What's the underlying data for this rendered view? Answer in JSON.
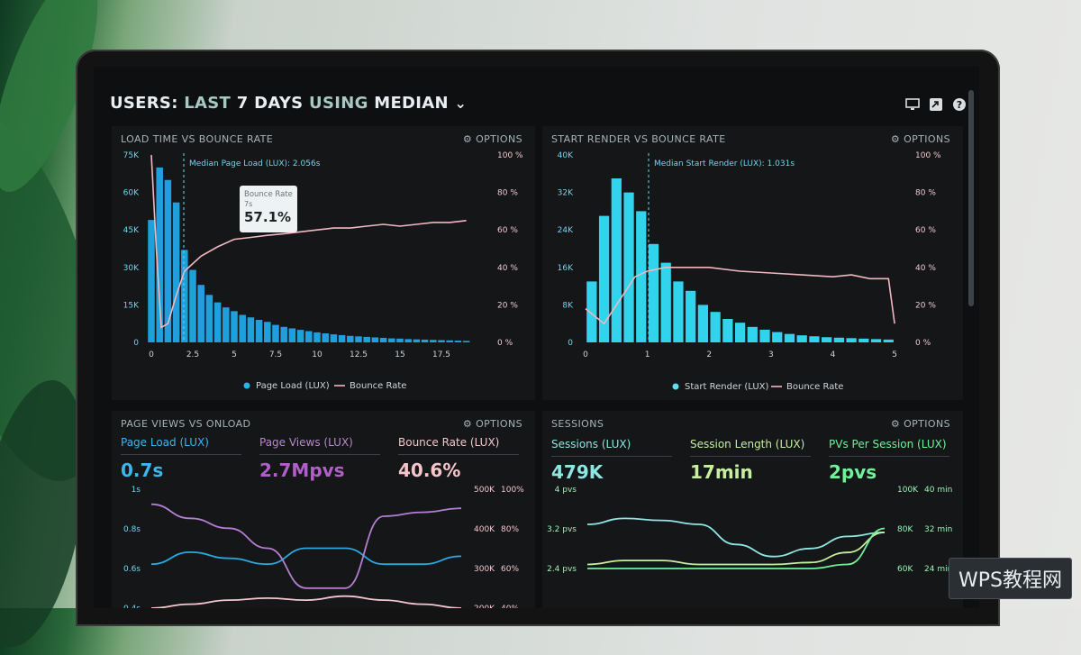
{
  "header": {
    "title_prefix": "USERS:",
    "title_range": "LAST",
    "title_days": "7 DAYS",
    "title_mid": "USING",
    "title_metric": "MEDIAN",
    "title_chevron": "⌄"
  },
  "icons": [
    "monitor-icon",
    "share-icon",
    "help-icon"
  ],
  "panels": {
    "load_time": {
      "title": "LOAD TIME VS BOUNCE RATE",
      "options": "⚙ OPTIONS",
      "median_label": "Median Page Load (LUX): 2.056s",
      "legend_a": "Page Load (LUX)",
      "legend_b": "Bounce Rate",
      "tooltip_title": "Bounce Rate",
      "tooltip_sub": "7s",
      "tooltip_value": "57.1%"
    },
    "start_render": {
      "title": "START RENDER VS BOUNCE RATE",
      "options": "⚙ OPTIONS",
      "median_label": "Median Start Render (LUX): 1.031s",
      "legend_a": "Start Render (LUX)",
      "legend_b": "Bounce Rate"
    },
    "page_views": {
      "title": "PAGE VIEWS VS ONLOAD",
      "options": "⚙ OPTIONS",
      "stat1_label": "Page Load (LUX)",
      "stat1_value": "0.7s",
      "stat2_label": "Page Views (LUX)",
      "stat2_value": "2.7Mpvs",
      "stat3_label": "Bounce Rate (LUX)",
      "stat3_value": "40.6%"
    },
    "sessions": {
      "title": "SESSIONS",
      "options": "⚙ OPTIONS",
      "stat1_label": "Sessions (LUX)",
      "stat1_value": "479K",
      "stat2_label": "Session Length (LUX)",
      "stat2_value": "17min",
      "stat3_label": "PVs Per Session (LUX)",
      "stat3_value": "2pvs"
    }
  },
  "watermark": "WPS教程网",
  "chart_data": [
    {
      "type": "bar",
      "name": "Load Time vs Bounce Rate",
      "x_ticks": [
        "0",
        "2.5",
        "5",
        "7.5",
        "10",
        "12.5",
        "15",
        "17.5"
      ],
      "y_left_ticks": [
        "0",
        "15K",
        "30K",
        "45K",
        "60K",
        "75K"
      ],
      "y_right_ticks": [
        "0 %",
        "20 %",
        "40 %",
        "60 %",
        "80 %",
        "100 %"
      ],
      "ylim_left": [
        0,
        75000
      ],
      "ylim_right": [
        0,
        100
      ],
      "xlim": [
        0,
        20
      ],
      "bars_x": [
        0,
        0.5,
        1,
        1.5,
        2,
        2.5,
        3,
        3.5,
        4,
        4.5,
        5,
        5.5,
        6,
        6.5,
        7,
        7.5,
        8,
        8.5,
        9,
        9.5,
        10,
        10.5,
        11,
        11.5,
        12,
        12.5,
        13,
        13.5,
        14,
        14.5,
        15,
        15.5,
        16,
        16.5,
        17,
        17.5,
        18,
        18.5,
        19
      ],
      "bars_y": [
        49000,
        70000,
        65000,
        56000,
        37000,
        29000,
        23000,
        19000,
        16000,
        14000,
        12500,
        11000,
        10000,
        9000,
        8200,
        7000,
        6200,
        5600,
        5000,
        4500,
        4000,
        3600,
        3200,
        2900,
        2600,
        2400,
        2200,
        2000,
        1800,
        1600,
        1500,
        1300,
        1200,
        1100,
        1000,
        900,
        800,
        700,
        600
      ],
      "bounce_x": [
        0,
        0.3,
        0.6,
        1,
        1.5,
        2,
        2.5,
        3,
        4,
        5,
        6,
        7,
        8,
        9,
        10,
        11,
        12,
        13,
        14,
        15,
        16,
        17,
        18,
        19
      ],
      "bounce_y": [
        100,
        50,
        8,
        10,
        25,
        38,
        42,
        46,
        51,
        55,
        56,
        57.1,
        58,
        59,
        60,
        61,
        61,
        62,
        63,
        62,
        63,
        64,
        64,
        65
      ],
      "median": 2.056,
      "legend": [
        "Page Load (LUX)",
        "Bounce Rate"
      ]
    },
    {
      "type": "bar",
      "name": "Start Render vs Bounce Rate",
      "x_ticks": [
        "0",
        "1",
        "2",
        "3",
        "4",
        "5"
      ],
      "y_left_ticks": [
        "0",
        "8K",
        "16K",
        "24K",
        "32K",
        "40K"
      ],
      "y_right_ticks": [
        "0 %",
        "20 %",
        "40 %",
        "60 %",
        "80 %",
        "100 %"
      ],
      "ylim_left": [
        0,
        40000
      ],
      "ylim_right": [
        0,
        100
      ],
      "xlim": [
        0,
        5.1
      ],
      "bars_x": [
        0.1,
        0.3,
        0.5,
        0.7,
        0.9,
        1.1,
        1.3,
        1.5,
        1.7,
        1.9,
        2.1,
        2.3,
        2.5,
        2.7,
        2.9,
        3.1,
        3.3,
        3.5,
        3.7,
        3.9,
        4.1,
        4.3,
        4.5,
        4.7,
        4.9
      ],
      "bars_y": [
        13000,
        27000,
        35000,
        32000,
        28000,
        21000,
        17000,
        13000,
        11000,
        8000,
        6500,
        5000,
        4200,
        3300,
        2700,
        2200,
        1800,
        1500,
        1300,
        1100,
        1000,
        900,
        800,
        700,
        600
      ],
      "bounce_x": [
        0,
        0.3,
        0.5,
        0.8,
        1.0,
        1.3,
        1.6,
        2.0,
        2.5,
        3.0,
        3.5,
        4.0,
        4.3,
        4.6,
        4.9,
        5.0
      ],
      "bounce_y": [
        18,
        10,
        20,
        35,
        38,
        40,
        40,
        40,
        38,
        37,
        36,
        35,
        36,
        34,
        34,
        10
      ],
      "median": 1.031,
      "legend": [
        "Start Render (LUX)",
        "Bounce Rate"
      ]
    },
    {
      "type": "line",
      "name": "Page Views vs Onload",
      "y_left_ticks": [
        "0.4s",
        "0.6s",
        "0.8s",
        "1s"
      ],
      "y_right_ticks_a": [
        "200K",
        "300K",
        "400K",
        "500K"
      ],
      "y_right_ticks_b": [
        "40%",
        "60%",
        "80%",
        "100%"
      ],
      "series": [
        {
          "name": "Page Load (LUX)",
          "x": [
            0,
            1,
            2,
            3,
            4,
            5,
            6,
            7,
            8
          ],
          "y": [
            0.62,
            0.68,
            0.65,
            0.62,
            0.7,
            0.7,
            0.62,
            0.62,
            0.66
          ]
        },
        {
          "name": "Page Views (LUX)",
          "x": [
            0,
            1,
            2,
            3,
            4,
            5,
            6,
            7,
            8
          ],
          "y": [
            0.92,
            0.85,
            0.8,
            0.7,
            0.5,
            0.5,
            0.86,
            0.88,
            0.9
          ]
        },
        {
          "name": "Bounce Rate (LUX)",
          "x": [
            0,
            1,
            2,
            3,
            4,
            5,
            6,
            7,
            8
          ],
          "y": [
            0.4,
            0.42,
            0.44,
            0.45,
            0.44,
            0.46,
            0.44,
            0.42,
            0.4
          ]
        }
      ]
    },
    {
      "type": "line",
      "name": "Sessions",
      "y_left_ticks": [
        "2.4 pvs",
        "3.2 pvs",
        "4 pvs"
      ],
      "y_right_ticks_a": [
        "60K",
        "80K",
        "100K"
      ],
      "y_right_ticks_b": [
        "24 min",
        "32 min",
        "40 min"
      ],
      "series": [
        {
          "name": "Sessions (LUX)",
          "x": [
            0,
            1,
            2,
            3,
            4,
            5,
            6,
            7,
            8
          ],
          "y": [
            3.1,
            3.25,
            3.2,
            3.1,
            2.6,
            2.3,
            2.5,
            2.8,
            2.9
          ]
        },
        {
          "name": "Session Length (LUX)",
          "x": [
            0,
            1,
            2,
            3,
            4,
            5,
            6,
            7,
            8
          ],
          "y": [
            2.1,
            2.2,
            2.2,
            2.1,
            2.1,
            2.1,
            2.15,
            2.4,
            2.9
          ]
        },
        {
          "name": "PVs Per Session (LUX)",
          "x": [
            0,
            1,
            2,
            3,
            4,
            5,
            6,
            7,
            8
          ],
          "y": [
            2.0,
            2.0,
            2.0,
            2.0,
            2.0,
            2.0,
            2.0,
            2.1,
            3.0
          ]
        }
      ]
    }
  ]
}
